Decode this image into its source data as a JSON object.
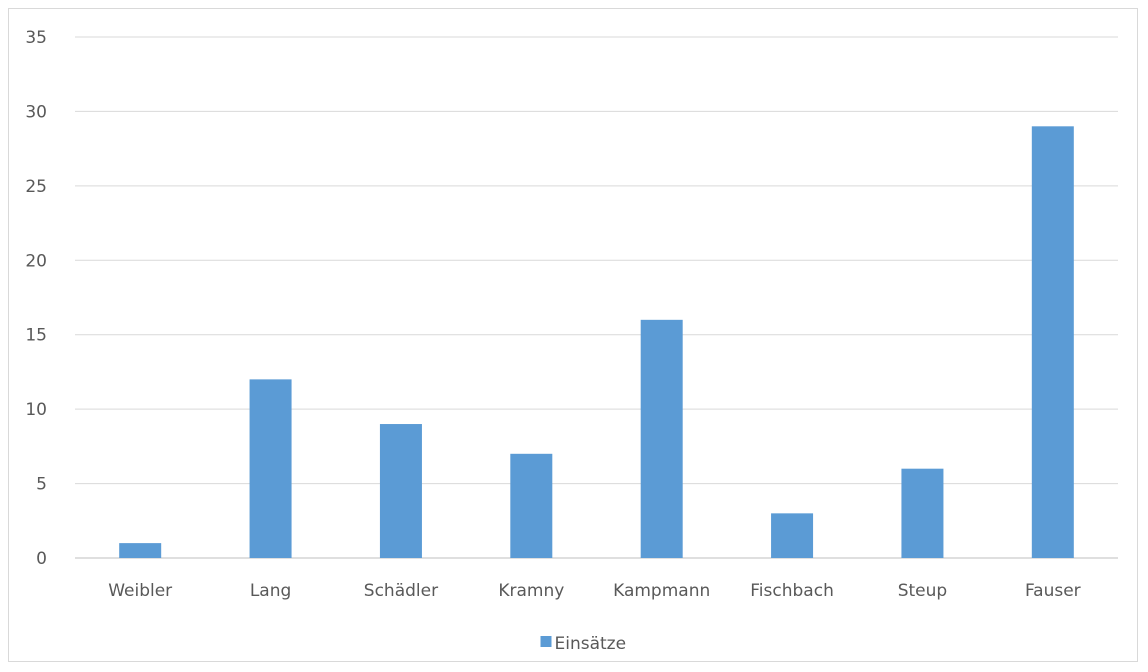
{
  "chart_data": {
    "type": "bar",
    "title": "",
    "xlabel": "",
    "ylabel": "",
    "categories": [
      "Weibler",
      "Lang",
      "Schädler",
      "Kramny",
      "Kampmann",
      "Fischbach",
      "Steup",
      "Fauser"
    ],
    "series": [
      {
        "name": "Einsätze",
        "values": [
          1,
          12,
          9,
          7,
          16,
          3,
          6,
          29
        ],
        "color": "#5b9bd5"
      }
    ],
    "ylim": [
      0,
      35
    ],
    "yticks": [
      0,
      5,
      10,
      15,
      20,
      25,
      30,
      35
    ],
    "grid": true,
    "legend": "bottom-center"
  }
}
